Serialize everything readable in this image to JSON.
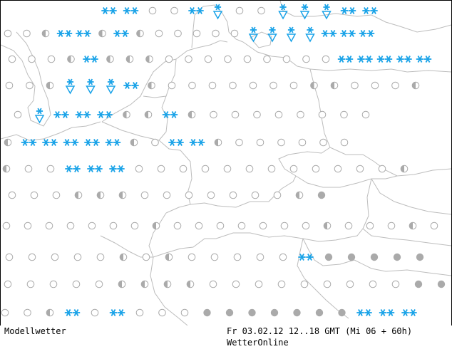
{
  "footer": {
    "product": "Modellwetter",
    "forecast": "Fr 03.02.12 12..18 GMT (Mi 06 + 60h)",
    "brand": "WetterOnline"
  },
  "symbol_types": [
    "circle-empty",
    "circle-half",
    "circle-full",
    "snow-double-star",
    "snow-shower"
  ],
  "colors": {
    "border": "#bdbdbd",
    "symbol_gray": "#aaaaaa",
    "snow": "#1aa3e8",
    "frame": "#000000"
  },
  "map_rows": [
    "...SSSS.e.e.SS.W.e.e.W.W.W.SSS.",
    ".e.e.h.SSS.h.S.h.e.e.e.e.e.W.W.W.W.SSSSSS.",
    ".e.e.e.h.SS.h.h.h.e.e.e.e.e.e.e.e.e.SSSS.SSSSS.",
    ".e.e.h.W.W.W.S.h.e.e.e.e.e.e.e.h.h.e.e.e.h.",
    ".e.W.SS.SS.S.h.h.S.h.e.e.e.e.e.e.e.e.",
    ".h.SSS.S.SS.SS.h.e.SSS.h.e.e.e.e.e.e.",
    ".h.e.e.S.S.S.e.e.e.e.e.e.e.e.e.e.e.e.h.",
    ".e.e.e.h.h.h.e.e.e.e.e.e.e.h.f.",
    ".e.e.e.e.e.e.e.h.e.e.e.e.e.e.e.h.e.e.e.h.e.h.f.f.f.",
    ".e.e.e.e.e.h.e.h.e.e.e.e.e.S.f.f.f.f.f.",
    ".e.e.e.e.e.h.h.h.h.e.e.e.e.e.e.e.e.e.f.f.S.S.",
    ".e.e.h.SS.e.SS.e.e.e.f.f.f.f.f.f.f.SSSSS."
  ]
}
